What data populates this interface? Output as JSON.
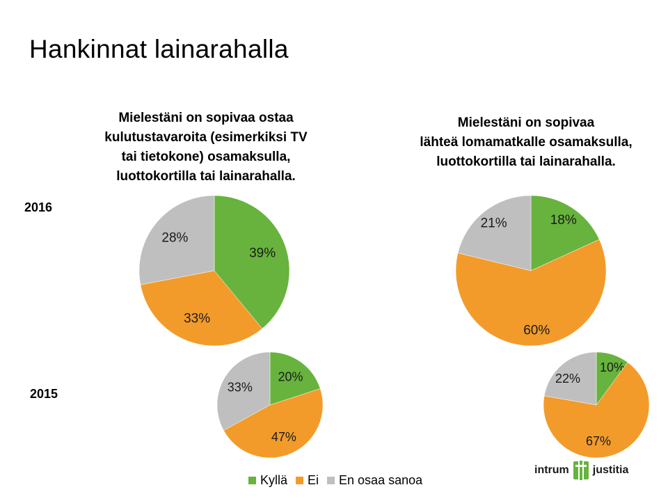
{
  "page": {
    "title": "Hankinnat lainarahalla",
    "years": [
      "2016",
      "2015"
    ]
  },
  "colors": {
    "kylla": "#67b33d",
    "ei": "#f29b2b",
    "en_osaa_sanoa": "#bfbfbf"
  },
  "chart_titles": {
    "left": [
      "Mielestäni on sopivaa ostaa",
      "kulutustavaroita (esimerkiksi TV",
      "tai tietokone) osamaksulla,",
      "luottokortilla tai lainarahalla."
    ],
    "right": [
      "Mielestäni on sopivaa",
      "lähteä lomamatkalle osamaksulla,",
      "luottokortilla tai lainarahalla."
    ]
  },
  "legend": {
    "items": [
      {
        "label": "Kyllä",
        "color_key": "kylla"
      },
      {
        "label": "Ei",
        "color_key": "ei"
      },
      {
        "label": "En osaa sanoa",
        "color_key": "en_osaa_sanoa"
      }
    ]
  },
  "logo": {
    "left_word": "intrum",
    "right_word": "justitia",
    "icon": "intrum-justitia-logo-icon"
  },
  "chart_data": [
    {
      "type": "pie",
      "title": "Mielestäni on sopivaa ostaa kulutustavaroita (esimerkiksi TV tai tietokone) osamaksulla, luottokortilla tai lainarahalla.",
      "subset": "2016",
      "categories": [
        "Kyllä",
        "Ei",
        "En osaa sanoa"
      ],
      "values": [
        39,
        33,
        28
      ],
      "labels": [
        "39%",
        "33%",
        "28%"
      ]
    },
    {
      "type": "pie",
      "title": "Mielestäni on sopivaa ostaa kulutustavaroita (esimerkiksi TV tai tietokone) osamaksulla, luottokortilla tai lainarahalla.",
      "subset": "2015",
      "categories": [
        "Kyllä",
        "Ei",
        "En osaa sanoa"
      ],
      "values": [
        20,
        47,
        33
      ],
      "labels": [
        "20%",
        "47%",
        "33%"
      ]
    },
    {
      "type": "pie",
      "title": "Mielestäni on sopivaa lähteä lomamatkalle osamaksulla, luottokortilla tai lainarahalla.",
      "subset": "2016",
      "categories": [
        "Kyllä",
        "Ei",
        "En osaa sanoa"
      ],
      "values": [
        18,
        60,
        21
      ],
      "labels": [
        "18%",
        "60%",
        "21%"
      ]
    },
    {
      "type": "pie",
      "title": "Mielestäni on sopivaa lähteä lomamatkalle osamaksulla, luottokortilla tai lainarahalla.",
      "subset": "2015",
      "categories": [
        "Kyllä",
        "Ei",
        "En osaa sanoa"
      ],
      "values": [
        10,
        67,
        22
      ],
      "labels": [
        "10%",
        "67%",
        "22%"
      ]
    }
  ]
}
